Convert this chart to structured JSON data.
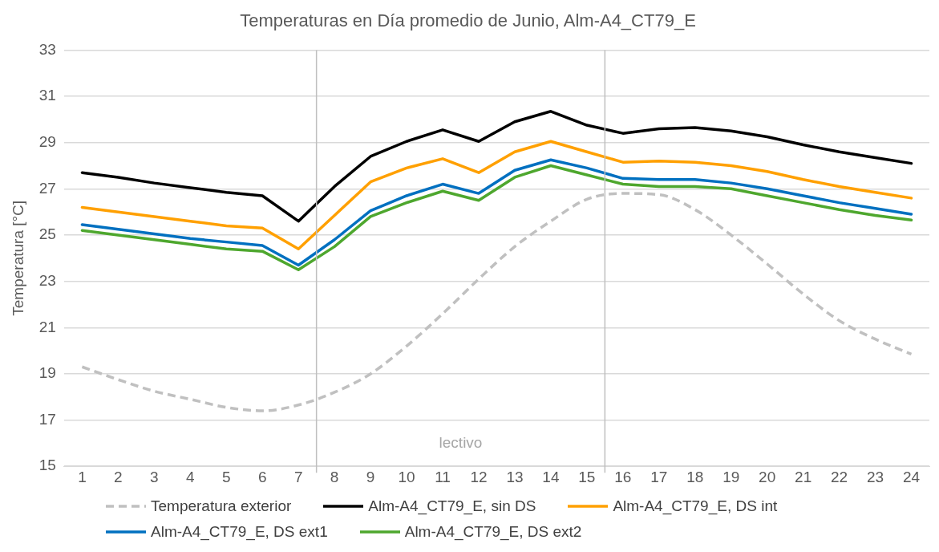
{
  "chart_data": {
    "type": "line",
    "title": "Temperaturas en Día promedio de Junio, Alm-A4_CT79_E",
    "ylabel": "Temperatura [°C]",
    "x": [
      1,
      2,
      3,
      4,
      5,
      6,
      7,
      8,
      9,
      10,
      11,
      12,
      13,
      14,
      15,
      16,
      17,
      18,
      19,
      20,
      21,
      22,
      23,
      24
    ],
    "xlim": [
      0.5,
      24.5
    ],
    "xticks": [
      1,
      2,
      3,
      4,
      5,
      6,
      7,
      8,
      9,
      10,
      11,
      12,
      13,
      14,
      15,
      16,
      17,
      18,
      19,
      20,
      21,
      22,
      23,
      24
    ],
    "ylim": [
      15,
      33
    ],
    "yticks": [
      15,
      17,
      19,
      21,
      23,
      25,
      27,
      29,
      31,
      33
    ],
    "grid": "y",
    "legend": "bottom",
    "marker": "none",
    "ref_lines": [
      {
        "axis": "x",
        "value": 7.5,
        "color": "#bfbfbf"
      },
      {
        "axis": "x",
        "value": 15.5,
        "color": "#bfbfbf"
      }
    ],
    "annotations": [
      "lectivo"
    ],
    "series": [
      {
        "name": "Temperatura exterior",
        "color": "#c0c0c0",
        "line_style": "dashed",
        "values": [
          19.3,
          18.75,
          18.25,
          17.9,
          17.55,
          17.4,
          17.65,
          18.2,
          19.0,
          20.2,
          21.6,
          23.1,
          24.5,
          25.6,
          26.55,
          26.8,
          26.75,
          26.1,
          25.0,
          23.75,
          22.45,
          21.3,
          20.5,
          19.85
        ]
      },
      {
        "name": "Alm-A4_CT79_E, sin DS",
        "color": "#000000",
        "line_style": "solid",
        "values": [
          27.7,
          27.5,
          27.25,
          27.05,
          26.85,
          26.7,
          25.6,
          27.1,
          28.4,
          29.05,
          29.55,
          29.05,
          29.9,
          30.35,
          29.75,
          29.4,
          29.6,
          29.65,
          29.5,
          29.25,
          28.9,
          28.6,
          28.35,
          28.1
        ]
      },
      {
        "name": "Alm-A4_CT79_E, DS int",
        "color": "#ffa000",
        "line_style": "solid",
        "values": [
          26.2,
          26.0,
          25.8,
          25.6,
          25.4,
          25.3,
          24.4,
          25.85,
          27.3,
          27.9,
          28.3,
          27.7,
          28.6,
          29.05,
          28.6,
          28.15,
          28.2,
          28.15,
          28.0,
          27.75,
          27.4,
          27.1,
          26.85,
          26.6
        ]
      },
      {
        "name": "Alm-A4_CT79_E, DS ext1",
        "color": "#0070c0",
        "line_style": "solid",
        "values": [
          25.45,
          25.25,
          25.05,
          24.85,
          24.7,
          24.55,
          23.7,
          24.8,
          26.05,
          26.7,
          27.2,
          26.8,
          27.8,
          28.25,
          27.9,
          27.45,
          27.4,
          27.4,
          27.25,
          27.0,
          26.7,
          26.4,
          26.15,
          25.9
        ]
      },
      {
        "name": "Alm-A4_CT79_E, DS ext2",
        "color": "#4ea72e",
        "line_style": "solid",
        "values": [
          25.2,
          25.0,
          24.8,
          24.6,
          24.4,
          24.3,
          23.5,
          24.5,
          25.8,
          26.4,
          26.9,
          26.5,
          27.5,
          28.0,
          27.6,
          27.2,
          27.1,
          27.1,
          27.0,
          26.7,
          26.4,
          26.1,
          25.85,
          25.65
        ]
      }
    ]
  }
}
